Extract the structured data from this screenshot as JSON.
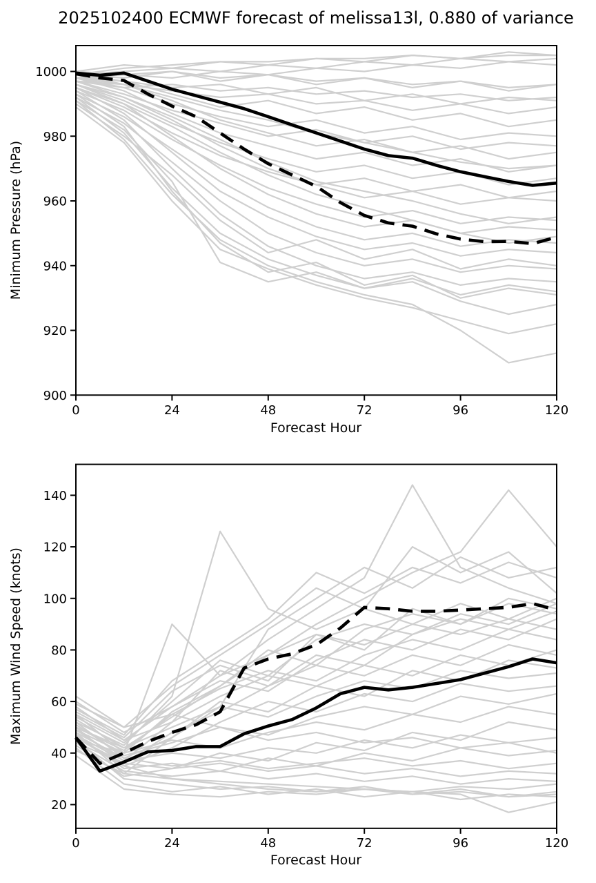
{
  "figure": {
    "title": "2025102400 ECMWF forecast of melissa13l, 0.880 of variance",
    "background_color": "#ffffff",
    "member_line_color": "#cfcfcf",
    "main_line_color": "#000000"
  },
  "chart_data": [
    {
      "type": "line",
      "title": "2025102400 ECMWF forecast of melissa13l, 0.880 of variance",
      "xlabel": "Forecast Hour",
      "ylabel": "Minimum Pressure (hPa)",
      "xlim": [
        0,
        120
      ],
      "ylim": [
        900,
        1008
      ],
      "xticks": [
        0,
        24,
        48,
        72,
        96,
        120
      ],
      "yticks": [
        900,
        920,
        940,
        960,
        980,
        1000
      ],
      "grid": false,
      "legend": "none",
      "x_main": [
        0,
        6,
        12,
        18,
        24,
        30,
        36,
        42,
        48,
        54,
        60,
        66,
        72,
        78,
        84,
        90,
        96,
        102,
        108,
        114,
        120
      ],
      "series": [
        {
          "name": "ensemble_mean_solid",
          "style": "solid",
          "values": [
            999.5,
            998.8,
            999.5,
            997.0,
            994.5,
            992.5,
            990.5,
            988.5,
            986.0,
            983.5,
            981.0,
            978.5,
            976.0,
            974.0,
            973.2,
            971.0,
            969.0,
            967.5,
            966.0,
            964.8,
            965.5
          ]
        },
        {
          "name": "selected_forecast_dashed",
          "style": "dashed",
          "values": [
            999.3,
            998.0,
            997.2,
            993.0,
            989.3,
            986.0,
            981.0,
            976.0,
            971.5,
            968.0,
            964.5,
            959.5,
            955.5,
            953.2,
            952.2,
            949.8,
            948.2,
            947.4,
            947.5,
            946.8,
            948.8
          ]
        }
      ],
      "x_members": [
        0,
        12,
        24,
        36,
        48,
        60,
        72,
        84,
        96,
        108,
        120
      ],
      "members": [
        [
          999,
          1001,
          1002,
          1003,
          1003,
          1004,
          1004,
          1005,
          1004,
          1005,
          1005
        ],
        [
          1000,
          1002,
          1001,
          1003,
          1002,
          1004,
          1003,
          1005,
          1004,
          1006,
          1005
        ],
        [
          999,
          1000,
          1001,
          1000,
          1002,
          1001,
          1003,
          1002,
          1004,
          1003,
          1004
        ],
        [
          998,
          999,
          998,
          1000,
          999,
          1001,
          1000,
          1002,
          1001,
          1003,
          1002
        ],
        [
          999,
          998,
          1000,
          997,
          999,
          996,
          998,
          995,
          997,
          994,
          996
        ],
        [
          998,
          997,
          995,
          996,
          993,
          995,
          991,
          993,
          990,
          992,
          991
        ],
        [
          997,
          996,
          994,
          992,
          993,
          990,
          991,
          988,
          990,
          987,
          989
        ],
        [
          999,
          997,
          993,
          989,
          991,
          987,
          989,
          985,
          987,
          983,
          985
        ],
        [
          998,
          995,
          990,
          986,
          983,
          985,
          981,
          983,
          979,
          981,
          980
        ],
        [
          997,
          993,
          988,
          984,
          980,
          982,
          978,
          980,
          976,
          978,
          977
        ],
        [
          999,
          996,
          991,
          985,
          981,
          977,
          979,
          975,
          977,
          973,
          975
        ],
        [
          998,
          994,
          987,
          981,
          977,
          973,
          975,
          971,
          973,
          969,
          971
        ],
        [
          996,
          991,
          984,
          978,
          973,
          969,
          971,
          967,
          969,
          965,
          967
        ],
        [
          995,
          989,
          981,
          974,
          969,
          965,
          967,
          963,
          965,
          961,
          963
        ],
        [
          997,
          992,
          985,
          977,
          970,
          965,
          961,
          963,
          959,
          961,
          960
        ],
        [
          994,
          988,
          979,
          971,
          964,
          959,
          955,
          957,
          953,
          955,
          954
        ],
        [
          996,
          990,
          980,
          970,
          962,
          956,
          952,
          954,
          950,
          952,
          951
        ],
        [
          993,
          986,
          976,
          966,
          958,
          952,
          948,
          950,
          946,
          948,
          947
        ],
        [
          995,
          987,
          975,
          963,
          955,
          949,
          945,
          947,
          943,
          945,
          944
        ],
        [
          992,
          984,
          972,
          960,
          950,
          944,
          940,
          942,
          938,
          940,
          939
        ],
        [
          994,
          985,
          970,
          956,
          946,
          940,
          936,
          938,
          934,
          936,
          935
        ],
        [
          991,
          982,
          966,
          941,
          935,
          938,
          933,
          936,
          931,
          934,
          932
        ],
        [
          993,
          983,
          963,
          947,
          938,
          941,
          934,
          937,
          930,
          933,
          931
        ],
        [
          990,
          980,
          968,
          954,
          944,
          948,
          942,
          945,
          939,
          942,
          940
        ],
        [
          992,
          981,
          964,
          950,
          942,
          937,
          933,
          935,
          929,
          925,
          928
        ],
        [
          989,
          978,
          960,
          945,
          939,
          934,
          930,
          927,
          923,
          919,
          922
        ],
        [
          991,
          979,
          962,
          948,
          940,
          935,
          931,
          928,
          920,
          910,
          913
        ],
        [
          995,
          990,
          983,
          975,
          968,
          962,
          958,
          954,
          950,
          947,
          949
        ],
        [
          996,
          992,
          986,
          979,
          972,
          966,
          963,
          960,
          956,
          953,
          955
        ],
        [
          998,
          996,
          992,
          988,
          985,
          981,
          978,
          975,
          972,
          970,
          971
        ],
        [
          997,
          995,
          996,
          994,
          995,
          993,
          994,
          992,
          993,
          991,
          992
        ],
        [
          1000,
          999,
          1000,
          998,
          999,
          997,
          998,
          996,
          997,
          995,
          996
        ]
      ]
    },
    {
      "type": "line",
      "title": "",
      "xlabel": "Forecast Hour",
      "ylabel": "Maximum Wind Speed (knots)",
      "xlim": [
        0,
        120
      ],
      "ylim": [
        10.8,
        152
      ],
      "xticks": [
        0,
        24,
        48,
        72,
        96,
        120
      ],
      "yticks": [
        20,
        40,
        60,
        80,
        100,
        120,
        140
      ],
      "grid": false,
      "legend": "none",
      "x_main": [
        0,
        6,
        12,
        18,
        24,
        30,
        36,
        42,
        48,
        54,
        60,
        66,
        72,
        78,
        84,
        90,
        96,
        102,
        108,
        114,
        120
      ],
      "series": [
        {
          "name": "ensemble_mean_solid",
          "style": "solid",
          "values": [
            46,
            33,
            36.5,
            40.5,
            41,
            42.5,
            42.5,
            47.5,
            50.5,
            53,
            57.5,
            63,
            65.5,
            64.5,
            65.5,
            67,
            68.5,
            71,
            73.5,
            76.5,
            75
          ]
        },
        {
          "name": "selected_forecast_dashed",
          "style": "dashed",
          "values": [
            46,
            36,
            40,
            44.5,
            48,
            51,
            56,
            73,
            76.5,
            78.5,
            82,
            88.5,
            96.5,
            96,
            95,
            95,
            95.5,
            96,
            96.5,
            98,
            95.5
          ]
        }
      ],
      "x_members": [
        0,
        12,
        24,
        36,
        48,
        60,
        72,
        84,
        96,
        108,
        120
      ],
      "members": [
        [
          45,
          30,
          28,
          26,
          27,
          25,
          26,
          24,
          25,
          23,
          24
        ],
        [
          48,
          32,
          30,
          29,
          28,
          27,
          26,
          25,
          24,
          17,
          21
        ],
        [
          42,
          28,
          25,
          27,
          24,
          26,
          23,
          25,
          22,
          24,
          23
        ],
        [
          50,
          35,
          30,
          28,
          26,
          25,
          27,
          24,
          26,
          23,
          25
        ],
        [
          44,
          33,
          31,
          33,
          30,
          32,
          29,
          31,
          28,
          30,
          29
        ],
        [
          46,
          36,
          34,
          36,
          33,
          35,
          32,
          34,
          31,
          33,
          32
        ],
        [
          52,
          38,
          35,
          37,
          34,
          36,
          38,
          35,
          37,
          34,
          36
        ],
        [
          47,
          34,
          36,
          33,
          38,
          35,
          40,
          37,
          42,
          39,
          41
        ],
        [
          49,
          37,
          40,
          38,
          42,
          40,
          45,
          42,
          47,
          44,
          46
        ],
        [
          43,
          31,
          34,
          40,
          37,
          44,
          41,
          48,
          45,
          52,
          49
        ],
        [
          55,
          40,
          45,
          42,
          48,
          52,
          49,
          55,
          52,
          58,
          55
        ],
        [
          51,
          39,
          44,
          50,
          47,
          54,
          58,
          55,
          62,
          59,
          63
        ],
        [
          46,
          35,
          42,
          52,
          60,
          56,
          63,
          60,
          67,
          64,
          66
        ],
        [
          53,
          42,
          50,
          58,
          54,
          62,
          68,
          65,
          72,
          69,
          71
        ],
        [
          48,
          38,
          46,
          60,
          56,
          66,
          62,
          72,
          68,
          76,
          73
        ],
        [
          58,
          45,
          52,
          62,
          70,
          66,
          74,
          70,
          78,
          74,
          80
        ],
        [
          44,
          36,
          48,
          56,
          66,
          74,
          70,
          78,
          74,
          82,
          78
        ],
        [
          50,
          41,
          55,
          65,
          72,
          68,
          78,
          84,
          80,
          88,
          84
        ],
        [
          60,
          48,
          58,
          68,
          64,
          76,
          84,
          80,
          88,
          84,
          92
        ],
        [
          47,
          37,
          52,
          72,
          66,
          78,
          74,
          86,
          92,
          88,
          95
        ],
        [
          54,
          44,
          60,
          76,
          70,
          84,
          90,
          86,
          94,
          90,
          98
        ],
        [
          49,
          40,
          56,
          66,
          80,
          74,
          88,
          94,
          90,
          98,
          94
        ],
        [
          56,
          46,
          64,
          74,
          68,
          86,
          80,
          96,
          90,
          100,
          96
        ],
        [
          45,
          40,
          90,
          70,
          78,
          86,
          82,
          90,
          86,
          92,
          88
        ],
        [
          52,
          43,
          62,
          126,
          96,
          88,
          96,
          90,
          98,
          92,
          100
        ],
        [
          57,
          47,
          68,
          80,
          92,
          110,
          102,
          112,
          106,
          114,
          108
        ],
        [
          41,
          32,
          46,
          58,
          88,
          100,
          112,
          104,
          116,
          108,
          112
        ],
        [
          59,
          50,
          66,
          78,
          90,
          104,
          96,
          120,
          110,
          118,
          102
        ],
        [
          55,
          45,
          58,
          70,
          84,
          96,
          108,
          144,
          112,
          104,
          98
        ],
        [
          50,
          42,
          54,
          66,
          78,
          90,
          100,
          110,
          118,
          142,
          120
        ],
        [
          62,
          50,
          55,
          50,
          45,
          48,
          44,
          46,
          42,
          44,
          40
        ],
        [
          39,
          26,
          24,
          23,
          25,
          24,
          26,
          25,
          27,
          26,
          28
        ]
      ]
    }
  ]
}
